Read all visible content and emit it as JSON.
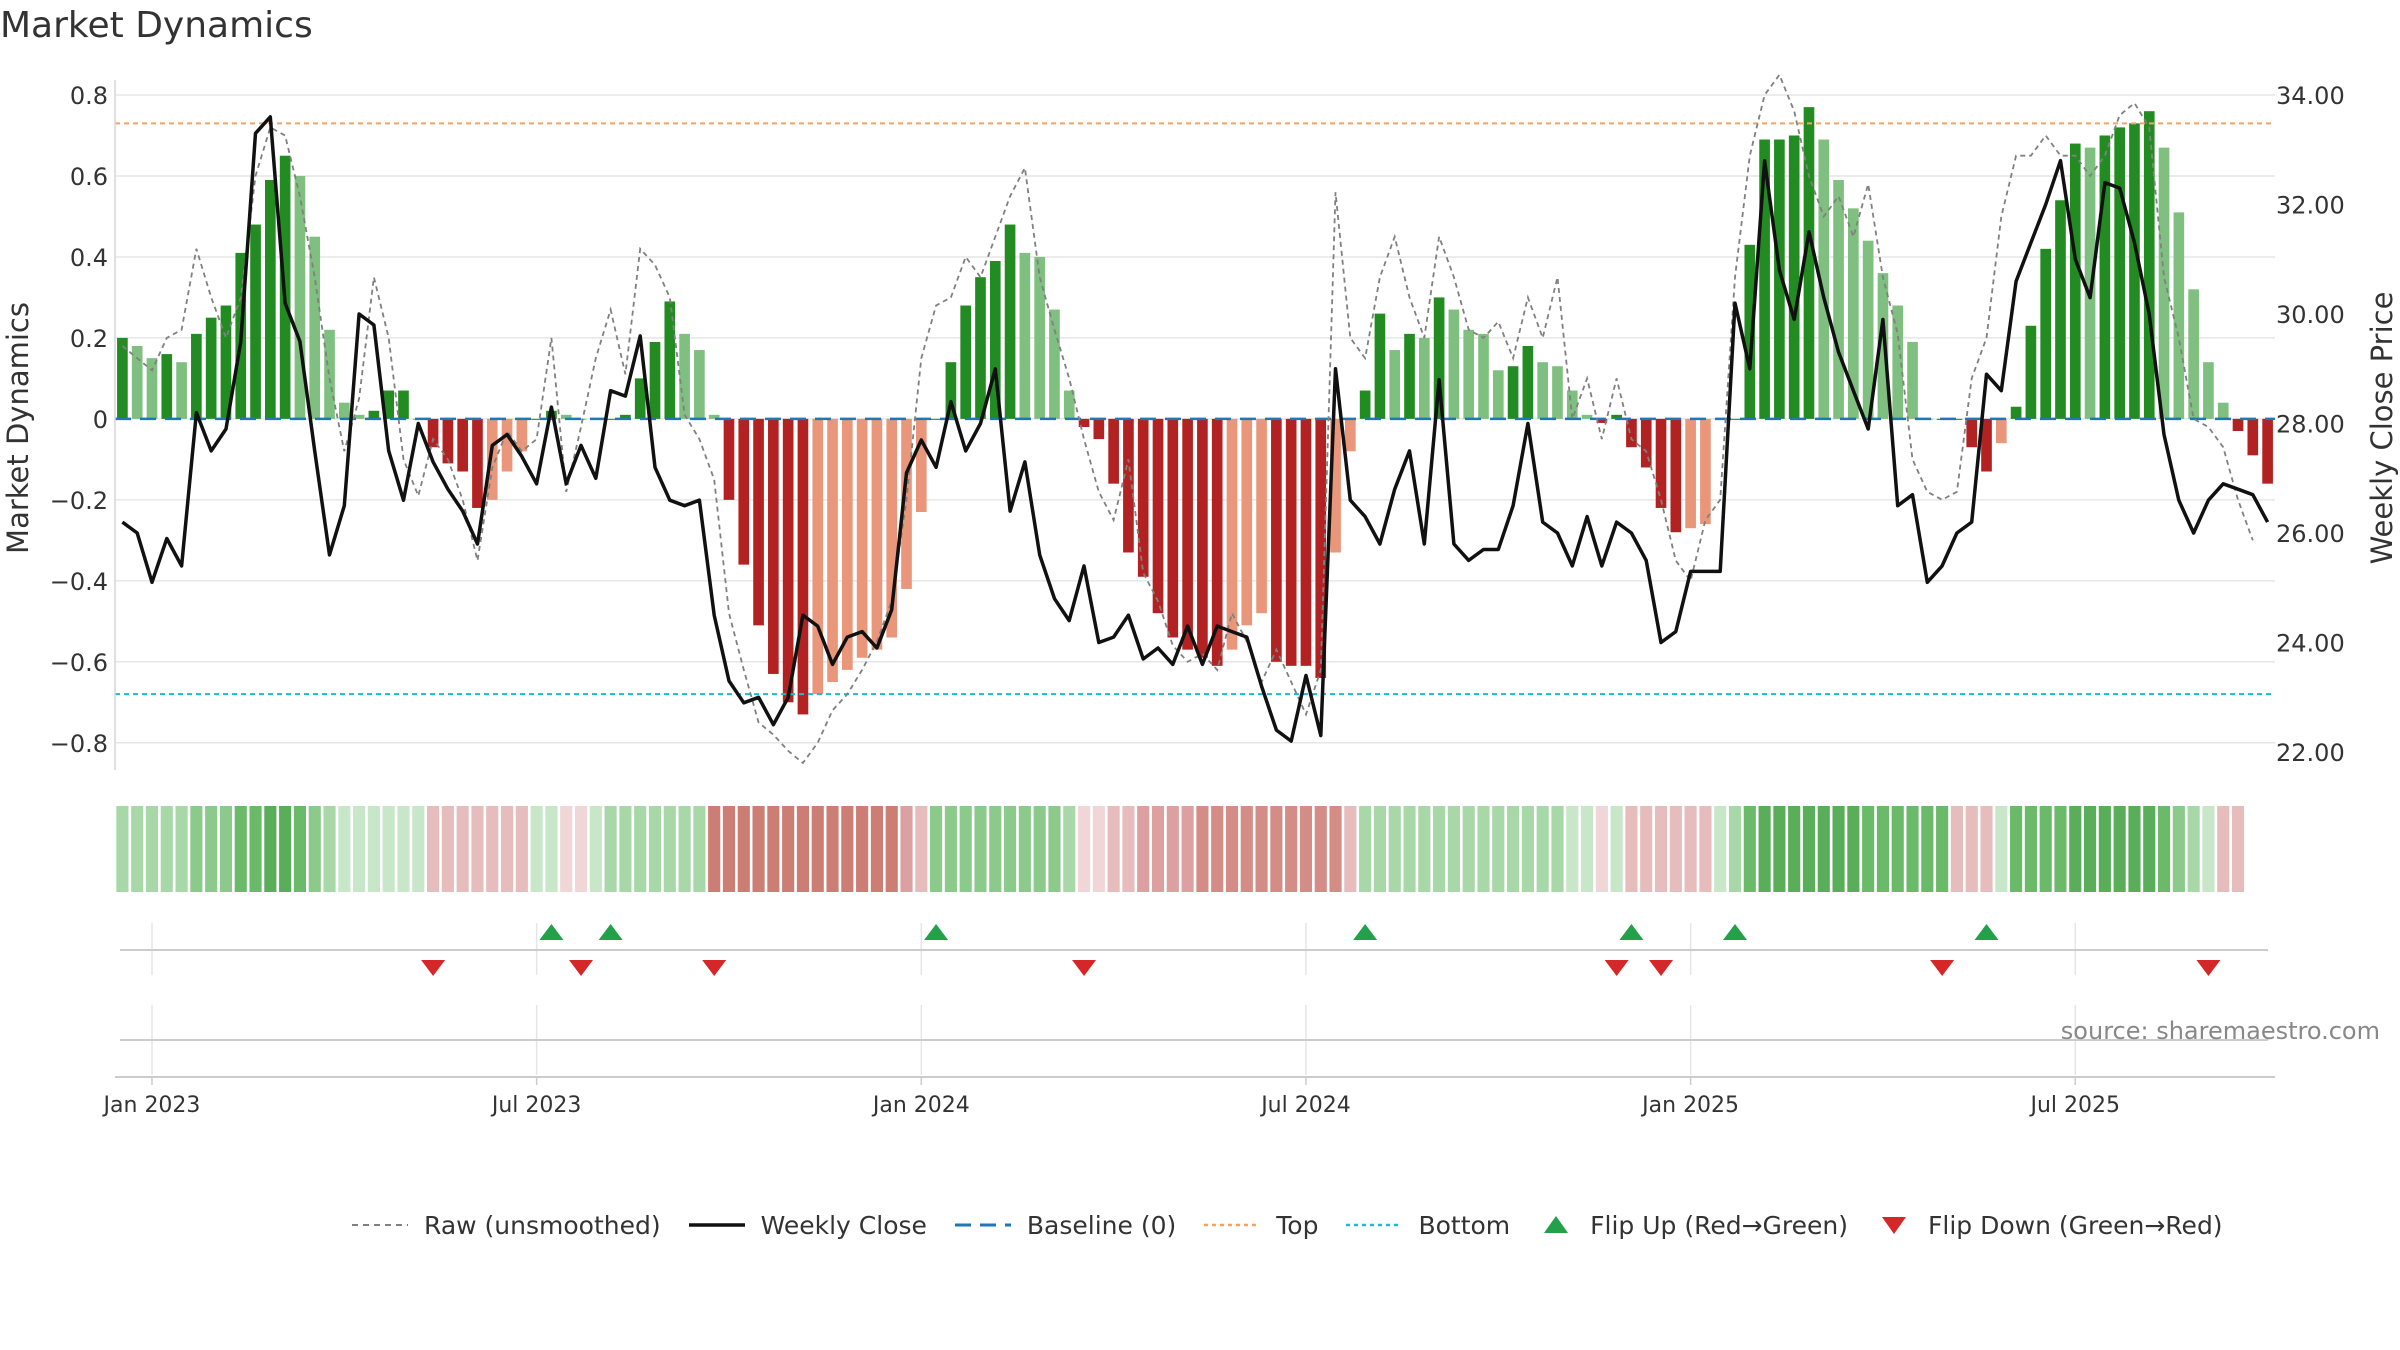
{
  "chart_data": {
    "type": "bar",
    "title": "Market Dynamics",
    "ylabel_left": "Market Dynamics",
    "ylabel_right": "Weekly Close Price",
    "source": "source: sharemaestro.com",
    "ylim_left": [
      -0.85,
      0.8
    ],
    "ylim_right": [
      21.8,
      34.0
    ],
    "yticks_left": [
      {
        "value": 0.8,
        "label": "0.8"
      },
      {
        "value": 0.6,
        "label": "0.6"
      },
      {
        "value": 0.4,
        "label": "0.4"
      },
      {
        "value": 0.2,
        "label": "0.2"
      },
      {
        "value": 0,
        "label": "0"
      },
      {
        "value": -0.2,
        "label": "−0.2"
      },
      {
        "value": -0.4,
        "label": "−0.4"
      },
      {
        "value": -0.6,
        "label": "−0.6"
      },
      {
        "value": -0.8,
        "label": "−0.8"
      }
    ],
    "yticks_right": [
      {
        "value": 34,
        "label": "34.00"
      },
      {
        "value": 32,
        "label": "32.00"
      },
      {
        "value": 30,
        "label": "30.00"
      },
      {
        "value": 28,
        "label": "28.00"
      },
      {
        "value": 26,
        "label": "26.00"
      },
      {
        "value": 24,
        "label": "24.00"
      },
      {
        "value": 22,
        "label": "22.00"
      }
    ],
    "xticks": [
      {
        "index": 2,
        "label": "Jan 2023"
      },
      {
        "index": 28,
        "label": "Jul 2023"
      },
      {
        "index": 54,
        "label": "Jan 2024"
      },
      {
        "index": 80,
        "label": "Jul 2024"
      },
      {
        "index": 106,
        "label": "Jan 2025"
      },
      {
        "index": 132,
        "label": "Jul 2025"
      }
    ],
    "top_level": 0.73,
    "bottom_level": -0.68,
    "baseline": 0,
    "bar_values": [
      0.2,
      0.18,
      0.15,
      0.16,
      0.14,
      0.21,
      0.25,
      0.28,
      0.41,
      0.48,
      0.59,
      0.65,
      0.6,
      0.45,
      0.22,
      0.04,
      0.01,
      0.02,
      0.07,
      0.07,
      0.0,
      -0.07,
      -0.11,
      -0.13,
      -0.22,
      -0.2,
      -0.13,
      -0.08,
      0.0,
      0.02,
      0.01,
      0.0,
      0.0,
      0.0,
      0.01,
      0.1,
      0.19,
      0.29,
      0.21,
      0.17,
      0.01,
      -0.2,
      -0.36,
      -0.51,
      -0.63,
      -0.7,
      -0.73,
      -0.68,
      -0.65,
      -0.62,
      -0.59,
      -0.57,
      -0.54,
      -0.42,
      -0.23,
      0.0,
      0.14,
      0.28,
      0.35,
      0.39,
      0.48,
      0.41,
      0.4,
      0.27,
      0.07,
      -0.02,
      -0.05,
      -0.16,
      -0.33,
      -0.39,
      -0.48,
      -0.54,
      -0.57,
      -0.59,
      -0.61,
      -0.57,
      -0.51,
      -0.48,
      -0.6,
      -0.61,
      -0.61,
      -0.64,
      -0.33,
      -0.08,
      0.07,
      0.26,
      0.17,
      0.21,
      0.2,
      0.3,
      0.27,
      0.22,
      0.21,
      0.12,
      0.13,
      0.18,
      0.14,
      0.13,
      0.07,
      0.01,
      -0.01,
      0.01,
      -0.07,
      -0.12,
      -0.22,
      -0.28,
      -0.27,
      -0.26,
      0.0,
      0.0,
      0.43,
      0.69,
      0.69,
      0.7,
      0.77,
      0.69,
      0.59,
      0.52,
      0.44,
      0.36,
      0.28,
      0.19,
      0.0,
      0.0,
      0.0,
      -0.07,
      -0.13,
      -0.06,
      0.03,
      0.23,
      0.42,
      0.54,
      0.68,
      0.67,
      0.7,
      0.72,
      0.73,
      0.76,
      0.67,
      0.51,
      0.32,
      0.14,
      0.04,
      -0.03,
      -0.09,
      -0.16
    ],
    "raw_values": [
      0.18,
      0.15,
      0.12,
      0.2,
      0.22,
      0.42,
      0.3,
      0.2,
      0.3,
      0.6,
      0.72,
      0.7,
      0.55,
      0.35,
      0.1,
      -0.08,
      0.05,
      0.35,
      0.2,
      -0.1,
      -0.19,
      -0.05,
      -0.1,
      -0.2,
      -0.35,
      -0.12,
      -0.03,
      -0.08,
      -0.05,
      0.2,
      -0.18,
      -0.02,
      0.15,
      0.27,
      0.11,
      0.42,
      0.38,
      0.3,
      0.01,
      -0.05,
      -0.15,
      -0.48,
      -0.62,
      -0.75,
      -0.78,
      -0.82,
      -0.85,
      -0.8,
      -0.72,
      -0.68,
      -0.62,
      -0.55,
      -0.45,
      -0.2,
      0.15,
      0.28,
      0.3,
      0.4,
      0.35,
      0.45,
      0.55,
      0.62,
      0.35,
      0.22,
      0.1,
      -0.05,
      -0.18,
      -0.25,
      -0.1,
      -0.38,
      -0.45,
      -0.56,
      -0.6,
      -0.58,
      -0.62,
      -0.48,
      -0.55,
      -0.65,
      -0.57,
      -0.65,
      -0.73,
      -0.62,
      0.56,
      0.2,
      0.15,
      0.35,
      0.45,
      0.3,
      0.2,
      0.45,
      0.35,
      0.22,
      0.2,
      0.24,
      0.15,
      0.3,
      0.2,
      0.35,
      0.0,
      0.1,
      -0.05,
      0.1,
      -0.05,
      -0.08,
      -0.2,
      -0.35,
      -0.4,
      -0.25,
      -0.2,
      0.35,
      0.65,
      0.8,
      0.85,
      0.76,
      0.6,
      0.5,
      0.55,
      0.45,
      0.58,
      0.35,
      0.21,
      -0.1,
      -0.18,
      -0.2,
      -0.18,
      0.1,
      0.2,
      0.5,
      0.65,
      0.65,
      0.7,
      0.65,
      0.65,
      0.6,
      0.65,
      0.75,
      0.78,
      0.72,
      0.35,
      0.2,
      0.0,
      -0.02,
      -0.07,
      -0.2,
      -0.3
    ],
    "close_values": [
      26.2,
      26.0,
      25.1,
      25.9,
      25.4,
      28.2,
      27.5,
      27.9,
      29.5,
      33.3,
      33.6,
      30.2,
      29.5,
      27.5,
      25.6,
      26.5,
      30.0,
      29.8,
      27.5,
      26.6,
      28.0,
      27.3,
      26.8,
      26.4,
      25.8,
      27.6,
      27.8,
      27.4,
      26.9,
      28.3,
      26.9,
      27.6,
      27.0,
      28.6,
      28.5,
      29.6,
      27.2,
      26.6,
      26.5,
      26.6,
      24.5,
      23.3,
      22.9,
      23.0,
      22.5,
      23.0,
      24.5,
      24.3,
      23.6,
      24.1,
      24.2,
      23.9,
      24.6,
      27.1,
      27.7,
      27.2,
      28.4,
      27.5,
      28.0,
      29.0,
      26.4,
      27.3,
      25.6,
      24.8,
      24.4,
      25.4,
      24.0,
      24.1,
      24.5,
      23.7,
      23.9,
      23.6,
      24.3,
      23.6,
      24.3,
      24.2,
      24.1,
      23.2,
      22.4,
      22.2,
      23.4,
      22.3,
      29.0,
      26.6,
      26.3,
      25.8,
      26.8,
      27.5,
      25.8,
      28.8,
      25.8,
      25.5,
      25.7,
      25.7,
      26.5,
      28.0,
      26.2,
      26.0,
      25.4,
      26.3,
      25.4,
      26.2,
      26.0,
      25.5,
      24.0,
      24.2,
      25.3,
      25.3,
      25.3,
      30.2,
      29.0,
      32.8,
      30.8,
      29.9,
      31.5,
      30.3,
      29.3,
      28.6,
      27.9,
      29.9,
      26.5,
      26.7,
      25.1,
      25.4,
      26.0,
      26.2,
      28.9,
      28.6,
      30.6,
      31.3,
      32.0,
      32.8,
      31.0,
      30.3,
      32.4,
      32.3,
      31.3,
      30.0,
      27.8,
      26.6,
      26.0,
      26.6,
      26.9,
      26.8,
      26.7,
      26.2
    ],
    "regime_strip": {
      "colors": [
        "#a8d8a8",
        "#a8d8a8",
        "#a8d8a8",
        "#a8d8a8",
        "#a8d8a8",
        "#8bca8b",
        "#8bca8b",
        "#8bca8b",
        "#6aba6a",
        "#6aba6a",
        "#5aae5a",
        "#5aae5a",
        "#6aba6a",
        "#8bca8b",
        "#a8d8a8",
        "#c8e6c8",
        "#c8e6c8",
        "#c8e6c8",
        "#c8e6c8",
        "#c8e6c8",
        "#c8e6c8",
        "#e6bcbc",
        "#e6bcbc",
        "#e6bcbc",
        "#e6bcbc",
        "#e6bcbc",
        "#e6bcbc",
        "#e6bcbc",
        "#c8e6c8",
        "#c8e6c8",
        "#f0d6d6",
        "#f0d6d6",
        "#c8e6c8",
        "#a8d8a8",
        "#a8d8a8",
        "#a8d8a8",
        "#a8d8a8",
        "#a8d8a8",
        "#a8d8a8",
        "#a8d8a8",
        "#cc7d74",
        "#cc7d74",
        "#cc7d74",
        "#cc7d74",
        "#cc7d74",
        "#cc7d74",
        "#cc7d74",
        "#cc7d74",
        "#cc7d74",
        "#cc7d74",
        "#cc7d74",
        "#cc7d74",
        "#cc7d74",
        "#dda0a0",
        "#e6bcbc",
        "#8bca8b",
        "#8bca8b",
        "#8bca8b",
        "#8bca8b",
        "#8bca8b",
        "#8bca8b",
        "#8bca8b",
        "#8bca8b",
        "#8bca8b",
        "#a8d8a8",
        "#f0d6d6",
        "#f0d6d6",
        "#e6bcbc",
        "#e6bcbc",
        "#dda0a0",
        "#dda0a0",
        "#dda0a0",
        "#dda0a0",
        "#d48c86",
        "#d48c86",
        "#d48c86",
        "#d48c86",
        "#d48c86",
        "#d48c86",
        "#d48c86",
        "#d48c86",
        "#d48c86",
        "#d48c86",
        "#e6bcbc",
        "#a8d8a8",
        "#a8d8a8",
        "#a8d8a8",
        "#a8d8a8",
        "#a8d8a8",
        "#a8d8a8",
        "#a8d8a8",
        "#a8d8a8",
        "#a8d8a8",
        "#a8d8a8",
        "#a8d8a8",
        "#a8d8a8",
        "#a8d8a8",
        "#a8d8a8",
        "#c8e6c8",
        "#c8e6c8",
        "#f0d6d6",
        "#c8e6c8",
        "#e6bcbc",
        "#e6bcbc",
        "#e6bcbc",
        "#e6bcbc",
        "#e6bcbc",
        "#e6bcbc",
        "#c8e6c8",
        "#a8d8a8",
        "#6aba6a",
        "#5aae5a",
        "#5aae5a",
        "#5aae5a",
        "#5aae5a",
        "#5aae5a",
        "#5aae5a",
        "#5aae5a",
        "#6aba6a",
        "#6aba6a",
        "#6aba6a",
        "#6aba6a",
        "#6aba6a",
        "#6aba6a",
        "#e6bcbc",
        "#e6bcbc",
        "#e6bcbc",
        "#c8e6c8",
        "#6aba6a",
        "#6aba6a",
        "#6aba6a",
        "#6aba6a",
        "#5aae5a",
        "#5aae5a",
        "#5aae5a",
        "#5aae5a",
        "#5aae5a",
        "#5aae5a",
        "#6aba6a",
        "#8bca8b",
        "#a8d8a8",
        "#c8e6c8",
        "#e6bcbc",
        "#e6bcbc"
      ]
    },
    "flip_up_indices": [
      29,
      33,
      55,
      84,
      102,
      109,
      126
    ],
    "flip_down_indices": [
      21,
      31,
      40,
      65,
      101,
      104,
      123,
      141
    ],
    "legend": {
      "raw": "Raw (unsmoothed)",
      "close": "Weekly Close",
      "baseline": "Baseline (0)",
      "top": "Top",
      "bottom": "Bottom",
      "flip_up": "Flip Up (Red→Green)",
      "flip_down": "Flip Down (Green→Red)"
    },
    "colors": {
      "bar_strong_up": "#228b22",
      "bar_weak_up": "#7fbf7f",
      "bar_strong_down": "#b22222",
      "bar_weak_down": "#e9967a",
      "raw_line": "#808080",
      "close_line": "#111111",
      "baseline": "#1f77b4",
      "top": "#f4a460",
      "bottom": "#17becf",
      "flip_up": "#22a04a",
      "flip_down": "#d62728",
      "grid": "#e6e6e6"
    }
  }
}
